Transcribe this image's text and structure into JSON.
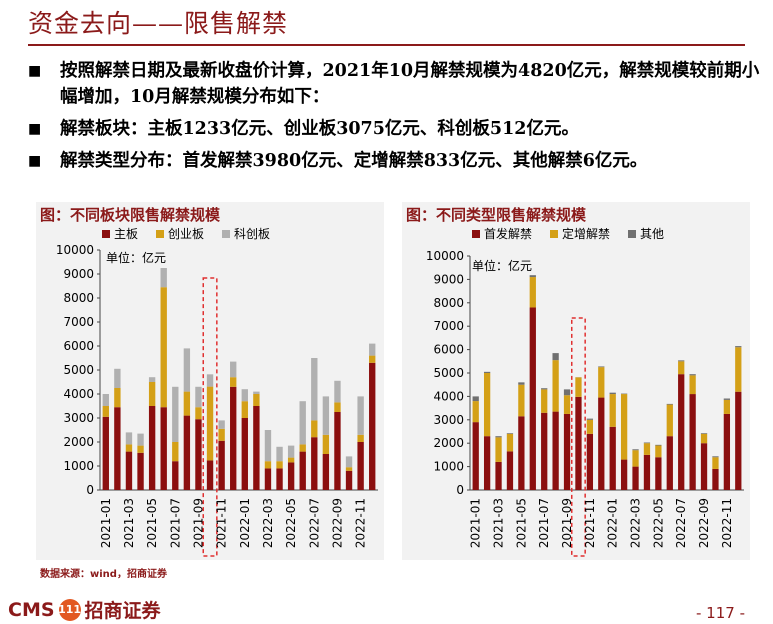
{
  "header": {
    "title": "资金去向——限售解禁"
  },
  "bullets": [
    "按照解禁日期及最新收盘价计算，2021年10月解禁规模为4820亿元，解禁规模较前期小幅增加，10月解禁规模分布如下：",
    "解禁板块：主板1233亿元、创业板3075亿元、科创板512亿元。",
    "解禁类型分布：首发解禁3980亿元、定增解禁833亿元、其他解禁6亿元。"
  ],
  "bullet_mark": "■",
  "colors": {
    "dark_red": "#8b0f0f",
    "gold": "#d4a017",
    "gray": "#b0b0b0",
    "dark_gray": "#707070",
    "accent": "#8b1a1a",
    "highlight": "#e03030"
  },
  "chart_data": [
    {
      "type": "bar",
      "stacked": true,
      "title": "图：不同板块限售解禁规模",
      "unit_label": "单位：亿元",
      "ylim": [
        0,
        10000
      ],
      "yticks": [
        0,
        1000,
        2000,
        3000,
        4000,
        5000,
        6000,
        7000,
        8000,
        9000,
        10000
      ],
      "categories": [
        "2021-01",
        "2021-02",
        "2021-03",
        "2021-04",
        "2021-05",
        "2021-06",
        "2021-07",
        "2021-08",
        "2021-09",
        "2021-10",
        "2021-11",
        "2021-12",
        "2022-01",
        "2022-02",
        "2022-03",
        "2022-04",
        "2022-05",
        "2022-06",
        "2022-07",
        "2022-08",
        "2022-09",
        "2022-10",
        "2022-11",
        "2022-12"
      ],
      "xtick_labels": [
        "2021-01",
        "",
        "2021-03",
        "",
        "2021-05",
        "",
        "2021-07",
        "",
        "2021-09",
        "",
        "2021-11",
        "",
        "2022-01",
        "",
        "2022-03",
        "",
        "2022-05",
        "",
        "2022-07",
        "",
        "2022-09",
        "",
        "2022-11",
        ""
      ],
      "series": [
        {
          "name": "主板",
          "color": "#8b0f0f",
          "values": [
            3050,
            3450,
            1600,
            1550,
            3500,
            3450,
            1200,
            3100,
            2950,
            1233,
            2050,
            4300,
            3000,
            3500,
            900,
            900,
            1150,
            1600,
            2200,
            1500,
            3250,
            800,
            2000,
            5300
          ]
        },
        {
          "name": "创业板",
          "color": "#d4a017",
          "values": [
            450,
            800,
            300,
            300,
            1000,
            5000,
            800,
            1000,
            500,
            3075,
            500,
            400,
            700,
            500,
            300,
            300,
            200,
            300,
            700,
            800,
            400,
            150,
            300,
            300
          ]
        },
        {
          "name": "科创板",
          "color": "#b0b0b0",
          "values": [
            500,
            800,
            500,
            500,
            200,
            800,
            2300,
            1800,
            850,
            512,
            350,
            650,
            500,
            100,
            1300,
            600,
            500,
            1800,
            2600,
            1600,
            900,
            450,
            1600,
            500
          ]
        }
      ],
      "highlight_category": "2021-10"
    },
    {
      "type": "bar",
      "stacked": true,
      "title": "图：不同类型限售解禁规模",
      "unit_label": "单位：亿元",
      "ylim": [
        0,
        10000
      ],
      "yticks": [
        0,
        1000,
        2000,
        3000,
        4000,
        5000,
        6000,
        7000,
        8000,
        9000,
        10000
      ],
      "categories": [
        "2021-01",
        "2021-02",
        "2021-03",
        "2021-04",
        "2021-05",
        "2021-06",
        "2021-07",
        "2021-08",
        "2021-09",
        "2021-10",
        "2021-11",
        "2021-12",
        "2022-01",
        "2022-02",
        "2022-03",
        "2022-04",
        "2022-05",
        "2022-06",
        "2022-07",
        "2022-08",
        "2022-09",
        "2022-10",
        "2022-11",
        "2022-12"
      ],
      "xtick_labels": [
        "2021-01",
        "",
        "2021-03",
        "",
        "2021-05",
        "",
        "2021-07",
        "",
        "2021-09",
        "",
        "2021-11",
        "",
        "2022-01",
        "",
        "2022-03",
        "",
        "2022-05",
        "",
        "2022-07",
        "",
        "2022-09",
        "",
        "2022-11",
        ""
      ],
      "series": [
        {
          "name": "首发解禁",
          "color": "#8b0f0f",
          "values": [
            2900,
            2300,
            1200,
            1650,
            3150,
            7800,
            3300,
            3350,
            3250,
            3980,
            2400,
            3950,
            2700,
            1300,
            1000,
            1500,
            1400,
            2300,
            4950,
            4100,
            2000,
            900,
            3250,
            4200
          ]
        },
        {
          "name": "定增解禁",
          "color": "#d4a017",
          "values": [
            900,
            2700,
            1050,
            750,
            1350,
            1300,
            1000,
            2200,
            800,
            833,
            600,
            1300,
            1400,
            2800,
            700,
            500,
            500,
            1350,
            550,
            800,
            400,
            500,
            600,
            1900
          ]
        },
        {
          "name": "其他",
          "color": "#707070",
          "values": [
            200,
            50,
            50,
            30,
            100,
            80,
            50,
            300,
            250,
            6,
            50,
            30,
            60,
            20,
            40,
            30,
            30,
            30,
            40,
            50,
            30,
            40,
            60,
            50
          ]
        }
      ],
      "highlight_category": "2021-10"
    }
  ],
  "footer": {
    "source": "数据来源：wind，招商证券",
    "logo_text": "CMS",
    "logo_badge": "111",
    "logo_name": "招商证券",
    "page_number": "- 117 -"
  }
}
